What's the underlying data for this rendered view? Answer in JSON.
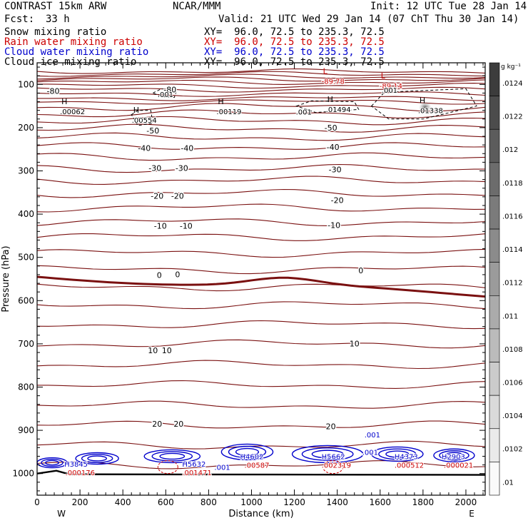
{
  "header": {
    "title": "CONTRAST 15km ARW",
    "center": "NCAR/MMM",
    "init": "Init: 12 UTC Tue 28 Jan 14",
    "fcst_label": "Fcst:",
    "fcst_value": "33 h",
    "valid": "Valid: 21 UTC Wed 29 Jan 14 (07 ChT Thu 30 Jan 14)"
  },
  "fields": [
    {
      "name": "Snow mixing ratio",
      "xy": "XY=  96.0, 72.5 to 235.3, 72.5",
      "color": "#000000"
    },
    {
      "name": "Rain water mixing ratio",
      "xy": "XY=  96.0, 72.5 to 235.3, 72.5",
      "color": "#cc0000"
    },
    {
      "name": "Cloud water mixing ratio",
      "xy": "XY=  96.0, 72.5 to 235.3, 72.5",
      "color": "#0000cc"
    },
    {
      "name": "Cloud ice mixing ratio",
      "xy": "XY=  96.0, 72.5 to 235.3, 72.5",
      "color": "#000000"
    }
  ],
  "chart_data": {
    "type": "contour",
    "xlabel": "Distance (km)",
    "ylabel": "Pressure (hPa)",
    "x_ticks": [
      0,
      200,
      400,
      600,
      800,
      1000,
      1200,
      1400,
      1600,
      1800,
      2000
    ],
    "y_ticks": [
      100,
      200,
      300,
      400,
      500,
      600,
      700,
      800,
      900,
      1000
    ],
    "xlim": [
      0,
      2090
    ],
    "ylim": [
      1050,
      50
    ],
    "y_log_scale": false,
    "x_end_labels": {
      "left": "W",
      "right": "E"
    },
    "temperature_contour_labels": [
      {
        "value": "-80",
        "x_km": 75,
        "p": 115
      },
      {
        "value": "-80",
        "x_km": 620,
        "p": 112
      },
      {
        "value": "-50",
        "x_km": 540,
        "p": 207
      },
      {
        "value": "-50",
        "x_km": 1370,
        "p": 200
      },
      {
        "value": "-40",
        "x_km": 500,
        "p": 247
      },
      {
        "value": "-40",
        "x_km": 700,
        "p": 247
      },
      {
        "value": "-40",
        "x_km": 1380,
        "p": 245
      },
      {
        "value": "-30",
        "x_km": 550,
        "p": 293
      },
      {
        "value": "-30",
        "x_km": 675,
        "p": 293
      },
      {
        "value": "-30",
        "x_km": 1390,
        "p": 297
      },
      {
        "value": "-20",
        "x_km": 560,
        "p": 358
      },
      {
        "value": "-20",
        "x_km": 655,
        "p": 358
      },
      {
        "value": "-20",
        "x_km": 1400,
        "p": 368
      },
      {
        "value": "-10",
        "x_km": 575,
        "p": 427
      },
      {
        "value": "-10",
        "x_km": 695,
        "p": 427
      },
      {
        "value": "-10",
        "x_km": 1385,
        "p": 425
      },
      {
        "value": "0",
        "x_km": 570,
        "p": 541
      },
      {
        "value": "0",
        "x_km": 655,
        "p": 539
      },
      {
        "value": "0",
        "x_km": 1510,
        "p": 530
      },
      {
        "value": "10",
        "x_km": 540,
        "p": 715
      },
      {
        "value": "10",
        "x_km": 605,
        "p": 715
      },
      {
        "value": "10",
        "x_km": 1480,
        "p": 699
      },
      {
        "value": "20",
        "x_km": 560,
        "p": 885
      },
      {
        "value": "20",
        "x_km": 660,
        "p": 885
      },
      {
        "value": "20",
        "x_km": 1370,
        "p": 891
      }
    ],
    "extrema_labels": [
      {
        "mark": "L",
        "value": "-89.78",
        "x_km": 1380,
        "p": 92,
        "color": "#cc0000"
      },
      {
        "mark": "L",
        "value": "-89.14",
        "x_km": 1650,
        "p": 103,
        "color": "#cc0000"
      },
      {
        "mark": "",
        "value": ".001",
        "x_km": 615,
        "p": 123,
        "color": "#000000"
      },
      {
        "mark": "",
        "value": ".001",
        "x_km": 1260,
        "p": 163,
        "color": "#000000"
      },
      {
        "mark": "",
        "value": ".001",
        "x_km": 1660,
        "p": 113,
        "color": "#000000"
      },
      {
        "mark": "H",
        "value": ".00062",
        "x_km": 160,
        "p": 162,
        "color": "#000000"
      },
      {
        "mark": "H",
        "value": ".00554",
        "x_km": 495,
        "p": 182,
        "color": "#000000"
      },
      {
        "mark": "H",
        "value": ".00119",
        "x_km": 890,
        "p": 162,
        "color": "#000000"
      },
      {
        "mark": "H",
        "value": ".01494",
        "x_km": 1400,
        "p": 157,
        "color": "#000000"
      },
      {
        "mark": "H",
        "value": ".01338",
        "x_km": 1830,
        "p": 160,
        "color": "#000000"
      },
      {
        "mark": "H",
        "value": "H3845",
        "x_km": 180,
        "p": 977,
        "color": "#0000cc"
      },
      {
        "mark": "",
        "value": ".000176",
        "x_km": 185,
        "p": 997,
        "color": "#cc0000"
      },
      {
        "mark": "H",
        "value": "H5632",
        "x_km": 730,
        "p": 977,
        "color": "#0000cc"
      },
      {
        "mark": "",
        "value": ".001471",
        "x_km": 730,
        "p": 997,
        "color": "#cc0000"
      },
      {
        "mark": "",
        "value": ".001",
        "x_km": 880,
        "p": 985,
        "color": "#0000cc"
      },
      {
        "mark": "H",
        "value": "H4602",
        "x_km": 1000,
        "p": 960,
        "color": "#0000cc"
      },
      {
        "mark": "",
        "value": ".00587",
        "x_km": 1020,
        "p": 980,
        "color": "#cc0000"
      },
      {
        "mark": "H",
        "value": "H5662",
        "x_km": 1380,
        "p": 960,
        "color": "#0000cc"
      },
      {
        "mark": "",
        "value": ".002319",
        "x_km": 1380,
        "p": 980,
        "color": "#cc0000"
      },
      {
        "mark": "",
        "value": ".001",
        "x_km": 1580,
        "p": 910,
        "color": "#0000cc"
      },
      {
        "mark": "",
        "value": ".001",
        "x_km": 1570,
        "p": 950,
        "color": "#0000cc"
      },
      {
        "mark": "H",
        "value": "H4373",
        "x_km": 1720,
        "p": 960,
        "color": "#0000cc"
      },
      {
        "mark": "",
        "value": ".000512",
        "x_km": 1720,
        "p": 980,
        "color": "#cc0000"
      },
      {
        "mark": "H",
        "value": "H2903",
        "x_km": 1940,
        "p": 960,
        "color": "#0000cc"
      },
      {
        "mark": "",
        "value": ".000021",
        "x_km": 1950,
        "p": 980,
        "color": "#cc0000"
      }
    ],
    "colorbar": {
      "unit": "g kg⁻¹",
      "ticks": [
        ".0124",
        ".0122",
        ".012",
        ".0118",
        ".0116",
        ".0114",
        ".0112",
        ".011",
        ".0108",
        ".0106",
        ".0104",
        ".0102",
        ".01"
      ]
    }
  }
}
